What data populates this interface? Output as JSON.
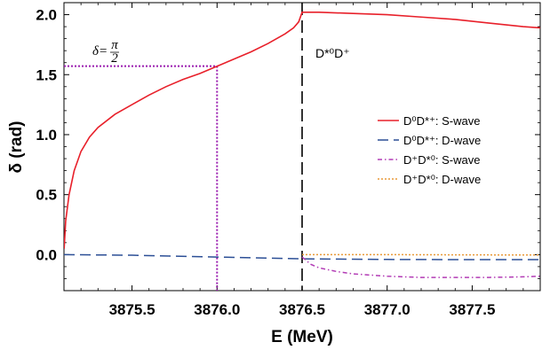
{
  "chart_data": {
    "type": "line",
    "xlabel": "E (MeV)",
    "ylabel": "δ (rad)",
    "xlim": [
      3875.1,
      3877.9
    ],
    "ylim": [
      -0.3,
      2.1
    ],
    "xticks": [
      3875.5,
      3876.0,
      3876.5,
      3877.0,
      3877.5
    ],
    "xtick_labels": [
      "3875.5",
      "3876.0",
      "3876.5",
      "3877.0",
      "3877.5"
    ],
    "yticks": [
      0.0,
      0.5,
      1.0,
      1.5,
      2.0
    ],
    "ytick_labels": [
      "0.0",
      "0.5",
      "1.0",
      "1.5",
      "2.0"
    ],
    "grid": false,
    "legend_position": "right",
    "series": [
      {
        "name": "D⁰D*⁺: S-wave",
        "color": "#e8202a",
        "style": "solid",
        "x": [
          3875.101,
          3875.11,
          3875.13,
          3875.16,
          3875.2,
          3875.25,
          3875.3,
          3875.4,
          3875.5,
          3875.6,
          3875.7,
          3875.8,
          3875.9,
          3876.0,
          3876.1,
          3876.2,
          3876.3,
          3876.4,
          3876.45,
          3876.48,
          3876.5,
          3876.55,
          3876.6,
          3876.8,
          3877.0,
          3877.2,
          3877.4,
          3877.6,
          3877.8,
          3877.9
        ],
        "y": [
          0.05,
          0.28,
          0.5,
          0.7,
          0.86,
          0.98,
          1.06,
          1.17,
          1.25,
          1.33,
          1.4,
          1.46,
          1.51,
          1.57,
          1.63,
          1.69,
          1.76,
          1.84,
          1.89,
          1.94,
          2.02,
          2.02,
          2.02,
          2.01,
          2.0,
          1.98,
          1.96,
          1.93,
          1.9,
          1.89
        ]
      },
      {
        "name": "D⁰D*⁺: D-wave",
        "color": "#2c4f96",
        "style": "dashed",
        "x": [
          3875.1,
          3875.5,
          3876.0,
          3876.5,
          3877.0,
          3877.5,
          3877.9
        ],
        "y": [
          0.0,
          -0.005,
          -0.02,
          -0.035,
          -0.04,
          -0.042,
          -0.042
        ]
      },
      {
        "name": "D⁺D*⁰: S-wave",
        "color": "#b23bb5",
        "style": "dashdot",
        "x": [
          3876.5,
          3876.55,
          3876.6,
          3876.7,
          3876.8,
          3877.0,
          3877.2,
          3877.4,
          3877.6,
          3877.8,
          3877.9
        ],
        "y": [
          -0.02,
          -0.08,
          -0.11,
          -0.14,
          -0.16,
          -0.18,
          -0.19,
          -0.19,
          -0.19,
          -0.185,
          -0.18
        ]
      },
      {
        "name": "D⁺D*⁰: D-wave",
        "color": "#e89a3a",
        "style": "dotted",
        "x": [
          3876.5,
          3877.0,
          3877.5,
          3877.9
        ],
        "y": [
          0.0,
          0.0,
          -0.002,
          -0.003
        ]
      }
    ],
    "annotations": {
      "threshold_label": "D*⁰D⁺",
      "threshold_x": 3876.5,
      "delta_half_pi_label": "δ=π/2",
      "delta_label_main": "δ=",
      "delta_label_num": "π",
      "delta_label_den": "2",
      "marker_x": 3876.0,
      "marker_y": 1.5708,
      "marker_color": "#9b1fb0"
    }
  }
}
